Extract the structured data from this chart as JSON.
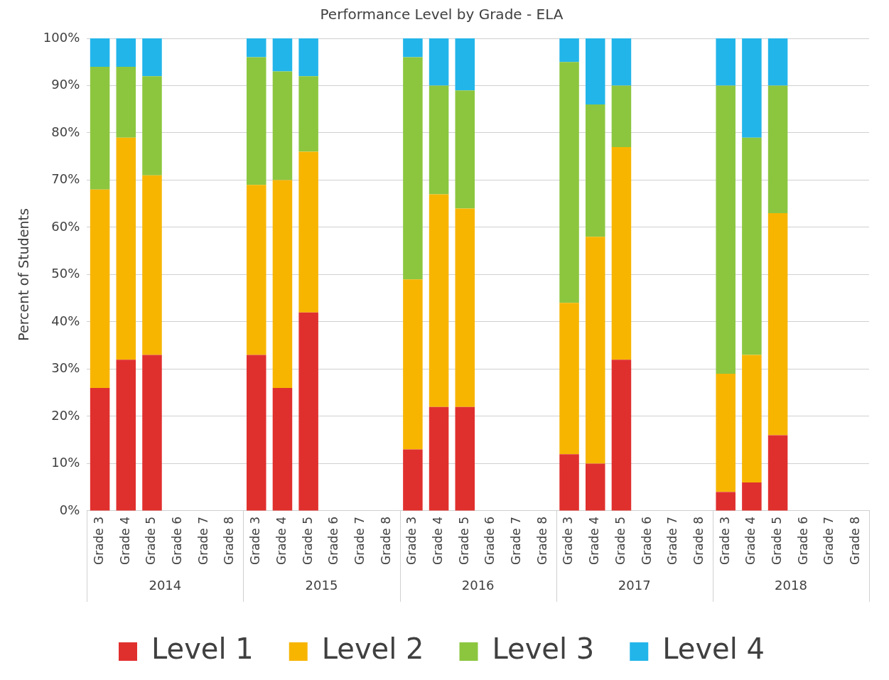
{
  "chart_data": {
    "type": "bar",
    "title": "Performance Level by Grade - ELA",
    "ylabel": "Percent of Students",
    "stacked": true,
    "grid": "y",
    "legend": "bottom",
    "categories": [
      "Grade 3",
      "Grade 4",
      "Grade 5",
      "Grade 6",
      "Grade 7",
      "Grade 8",
      "Grade 3",
      "Grade 4",
      "Grade 5",
      "Grade 6",
      "Grade 7",
      "Grade 8",
      "Grade 3",
      "Grade 4",
      "Grade 5",
      "Grade 6",
      "Grade 7",
      "Grade 8",
      "Grade 3",
      "Grade 4",
      "Grade 5",
      "Grade 6",
      "Grade 7",
      "Grade 8",
      "Grade 3",
      "Grade 4",
      "Grade 5",
      "Grade 6",
      "Grade 7",
      "Grade 8"
    ],
    "annotations": [
      "2014",
      "2015",
      "2016",
      "2017",
      "2018"
    ],
    "ylim": [
      0,
      100
    ],
    "yticks": [
      {
        "value": 0,
        "label": "0%"
      },
      {
        "value": 10,
        "label": "10%"
      },
      {
        "value": 20,
        "label": "20%"
      },
      {
        "value": 30,
        "label": "30%"
      },
      {
        "value": 40,
        "label": "40%"
      },
      {
        "value": 50,
        "label": "50%"
      },
      {
        "value": 60,
        "label": "60%"
      },
      {
        "value": 70,
        "label": "70%"
      },
      {
        "value": 80,
        "label": "80%"
      },
      {
        "value": 90,
        "label": "90%"
      },
      {
        "value": 100,
        "label": "100%"
      }
    ],
    "series": [
      {
        "name": "Level 1",
        "color": "#e0302e",
        "values": [
          26,
          32,
          33,
          null,
          null,
          null,
          33,
          26,
          42,
          null,
          null,
          null,
          13,
          22,
          22,
          null,
          null,
          null,
          12,
          10,
          32,
          null,
          null,
          null,
          4,
          6,
          16,
          null,
          null,
          null
        ]
      },
      {
        "name": "Level 2",
        "color": "#f7b500",
        "values": [
          42,
          47,
          38,
          null,
          null,
          null,
          36,
          44,
          34,
          null,
          null,
          null,
          36,
          45,
          42,
          null,
          null,
          null,
          32,
          48,
          45,
          null,
          null,
          null,
          25,
          27,
          47,
          null,
          null,
          null
        ]
      },
      {
        "name": "Level 3",
        "color": "#8cc63f",
        "values": [
          26,
          15,
          21,
          null,
          null,
          null,
          27,
          23,
          16,
          null,
          null,
          null,
          47,
          23,
          25,
          null,
          null,
          null,
          51,
          28,
          13,
          null,
          null,
          null,
          61,
          46,
          27,
          null,
          null,
          null
        ]
      },
      {
        "name": "Level 4",
        "color": "#22b5ea",
        "values": [
          6,
          6,
          8,
          null,
          null,
          null,
          4,
          7,
          8,
          null,
          null,
          null,
          4,
          10,
          11,
          null,
          null,
          null,
          5,
          14,
          10,
          null,
          null,
          null,
          10,
          21,
          10,
          null,
          null,
          null
        ]
      }
    ]
  }
}
